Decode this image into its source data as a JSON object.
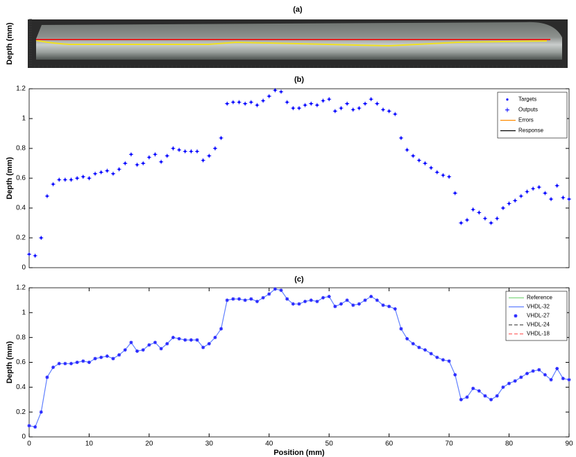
{
  "chart_data": [
    {
      "type": "image",
      "title": "(a)",
      "y_label": "Depth (mm)"
    },
    {
      "type": "scatter",
      "title": "(b)",
      "y_label": "Depth (mm)",
      "xlim": [
        0,
        90
      ],
      "ylim": [
        0,
        1.2
      ],
      "yticks": [
        0,
        0.2,
        0.4,
        0.6,
        0.8,
        1,
        1.2
      ],
      "legend": "upper-right",
      "x": [
        0,
        1,
        2,
        3,
        4,
        5,
        6,
        7,
        8,
        9,
        10,
        11,
        12,
        13,
        14,
        15,
        16,
        17,
        18,
        19,
        20,
        21,
        22,
        23,
        24,
        25,
        26,
        27,
        28,
        29,
        30,
        31,
        32,
        33,
        34,
        35,
        36,
        37,
        38,
        39,
        40,
        41,
        42,
        43,
        44,
        45,
        46,
        47,
        48,
        49,
        50,
        51,
        52,
        53,
        54,
        55,
        56,
        57,
        58,
        59,
        60,
        61,
        62,
        63,
        64,
        65,
        66,
        67,
        68,
        69,
        70,
        71,
        72,
        73,
        74,
        75,
        76,
        77,
        78,
        79,
        80,
        81,
        82,
        83,
        84,
        85,
        86,
        87,
        88,
        89,
        90
      ],
      "series": [
        {
          "name": "Targets",
          "color": "#0000ff",
          "marker": "dot",
          "values": [
            0.09,
            0.08,
            0.2,
            0.48,
            0.56,
            0.59,
            0.59,
            0.59,
            0.6,
            0.61,
            0.6,
            0.63,
            0.64,
            0.65,
            0.63,
            0.66,
            0.7,
            0.76,
            0.69,
            0.7,
            0.74,
            0.76,
            0.71,
            0.75,
            0.8,
            0.79,
            0.78,
            0.78,
            0.78,
            0.72,
            0.75,
            0.8,
            0.87,
            1.1,
            1.11,
            1.11,
            1.1,
            1.11,
            1.09,
            1.12,
            1.15,
            1.19,
            1.18,
            1.11,
            1.07,
            1.07,
            1.09,
            1.1,
            1.09,
            1.12,
            1.13,
            1.05,
            1.07,
            1.1,
            1.06,
            1.07,
            1.1,
            1.13,
            1.1,
            1.06,
            1.05,
            1.03,
            0.87,
            0.79,
            0.75,
            0.72,
            0.7,
            0.67,
            0.64,
            0.62,
            0.61,
            0.5,
            0.3,
            0.32,
            0.39,
            0.37,
            0.33,
            0.3,
            0.33,
            0.4,
            0.43,
            0.45,
            0.48,
            0.51,
            0.53,
            0.54,
            0.5,
            0.46,
            0.55,
            0.47,
            0.46
          ]
        },
        {
          "name": "Outputs",
          "color": "#0000ff",
          "marker": "plus",
          "values": [
            0.09,
            0.08,
            0.2,
            0.48,
            0.56,
            0.59,
            0.59,
            0.59,
            0.6,
            0.61,
            0.6,
            0.63,
            0.64,
            0.65,
            0.63,
            0.66,
            0.7,
            0.76,
            0.69,
            0.7,
            0.74,
            0.76,
            0.71,
            0.75,
            0.8,
            0.79,
            0.78,
            0.78,
            0.78,
            0.72,
            0.75,
            0.8,
            0.87,
            1.1,
            1.11,
            1.11,
            1.1,
            1.11,
            1.09,
            1.12,
            1.15,
            1.19,
            1.18,
            1.11,
            1.07,
            1.07,
            1.09,
            1.1,
            1.09,
            1.12,
            1.13,
            1.05,
            1.07,
            1.1,
            1.06,
            1.07,
            1.1,
            1.13,
            1.1,
            1.06,
            1.05,
            1.03,
            0.87,
            0.79,
            0.75,
            0.72,
            0.7,
            0.67,
            0.64,
            0.62,
            0.61,
            0.5,
            0.3,
            0.32,
            0.39,
            0.37,
            0.33,
            0.3,
            0.33,
            0.4,
            0.43,
            0.45,
            0.48,
            0.51,
            0.53,
            0.54,
            0.5,
            0.46,
            0.55,
            0.47,
            0.46
          ]
        },
        {
          "name": "Errors",
          "color": "#ff8c00",
          "marker": "line"
        },
        {
          "name": "Response",
          "color": "#000000",
          "marker": "line"
        }
      ]
    },
    {
      "type": "scatter",
      "title": "(c)",
      "x_label": "Position (mm)",
      "y_label": "Depth (mm)",
      "xlim": [
        0,
        90
      ],
      "ylim": [
        0,
        1.2
      ],
      "xticks": [
        0,
        10,
        20,
        30,
        40,
        50,
        60,
        70,
        80,
        90
      ],
      "yticks": [
        0,
        0.2,
        0.4,
        0.6,
        0.8,
        1,
        1.2
      ],
      "legend": "upper-right",
      "x": [
        0,
        1,
        2,
        3,
        4,
        5,
        6,
        7,
        8,
        9,
        10,
        11,
        12,
        13,
        14,
        15,
        16,
        17,
        18,
        19,
        20,
        21,
        22,
        23,
        24,
        25,
        26,
        27,
        28,
        29,
        30,
        31,
        32,
        33,
        34,
        35,
        36,
        37,
        38,
        39,
        40,
        41,
        42,
        43,
        44,
        45,
        46,
        47,
        48,
        49,
        50,
        51,
        52,
        53,
        54,
        55,
        56,
        57,
        58,
        59,
        60,
        61,
        62,
        63,
        64,
        65,
        66,
        67,
        68,
        69,
        70,
        71,
        72,
        73,
        74,
        75,
        76,
        77,
        78,
        79,
        80,
        81,
        82,
        83,
        84,
        85,
        86,
        87,
        88,
        89,
        90
      ],
      "series": [
        {
          "name": "Reference",
          "color": "#7fd67f",
          "marker": "line"
        },
        {
          "name": "VHDL-32",
          "color": "#5f7fff",
          "marker": "line",
          "values": [
            0.09,
            0.08,
            0.2,
            0.48,
            0.56,
            0.59,
            0.59,
            0.59,
            0.6,
            0.61,
            0.6,
            0.63,
            0.64,
            0.65,
            0.63,
            0.66,
            0.7,
            0.76,
            0.69,
            0.7,
            0.74,
            0.76,
            0.71,
            0.75,
            0.8,
            0.79,
            0.78,
            0.78,
            0.78,
            0.72,
            0.75,
            0.8,
            0.87,
            1.1,
            1.11,
            1.11,
            1.1,
            1.11,
            1.09,
            1.12,
            1.15,
            1.19,
            1.18,
            1.11,
            1.07,
            1.07,
            1.09,
            1.1,
            1.09,
            1.12,
            1.13,
            1.05,
            1.07,
            1.1,
            1.06,
            1.07,
            1.1,
            1.13,
            1.1,
            1.06,
            1.05,
            1.03,
            0.87,
            0.79,
            0.75,
            0.72,
            0.7,
            0.67,
            0.64,
            0.62,
            0.61,
            0.5,
            0.3,
            0.32,
            0.39,
            0.37,
            0.33,
            0.3,
            0.33,
            0.4,
            0.43,
            0.45,
            0.48,
            0.51,
            0.53,
            0.54,
            0.5,
            0.46,
            0.55,
            0.47,
            0.46
          ]
        },
        {
          "name": "VHDL-27",
          "color": "#2a2aff",
          "marker": "asterisk",
          "values": [
            0.09,
            0.08,
            0.2,
            0.48,
            0.56,
            0.59,
            0.59,
            0.59,
            0.6,
            0.61,
            0.6,
            0.63,
            0.64,
            0.65,
            0.63,
            0.66,
            0.7,
            0.76,
            0.69,
            0.7,
            0.74,
            0.76,
            0.71,
            0.75,
            0.8,
            0.79,
            0.78,
            0.78,
            0.78,
            0.72,
            0.75,
            0.8,
            0.87,
            1.1,
            1.11,
            1.11,
            1.1,
            1.11,
            1.09,
            1.12,
            1.15,
            1.19,
            1.18,
            1.11,
            1.07,
            1.07,
            1.09,
            1.1,
            1.09,
            1.12,
            1.13,
            1.05,
            1.07,
            1.1,
            1.06,
            1.07,
            1.1,
            1.13,
            1.1,
            1.06,
            1.05,
            1.03,
            0.87,
            0.79,
            0.75,
            0.72,
            0.7,
            0.67,
            0.64,
            0.62,
            0.61,
            0.5,
            0.3,
            0.32,
            0.39,
            0.37,
            0.33,
            0.3,
            0.33,
            0.4,
            0.43,
            0.45,
            0.48,
            0.51,
            0.53,
            0.54,
            0.5,
            0.46,
            0.55,
            0.47,
            0.46
          ]
        },
        {
          "name": "VHDL-24",
          "color": "#555555",
          "marker": "dash"
        },
        {
          "name": "VHDL-18",
          "color": "#ff6666",
          "marker": "dash"
        }
      ]
    }
  ]
}
